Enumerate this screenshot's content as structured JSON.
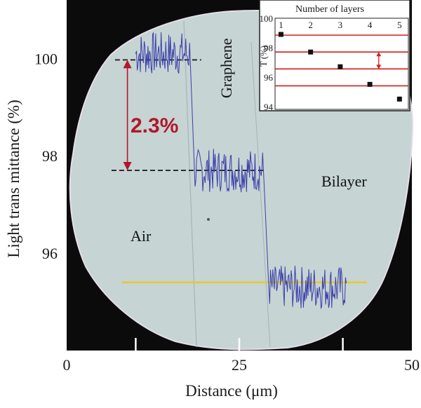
{
  "colors": {
    "photo_background": "#0b0b0b",
    "flake": "#c6d4d4",
    "trace": "#3b3fa8",
    "yellow_line": "#e8c832",
    "annotation_red": "#b0182a",
    "inset_red": "#d21e1e"
  },
  "chart_data": [
    {
      "type": "line",
      "xlabel": "Distance (μm)",
      "ylabel": "Light trans mittance (%)",
      "xlim": [
        0,
        50
      ],
      "ylim": [
        94.0,
        101.2
      ],
      "x_ticks": [
        "0",
        "25",
        "50"
      ],
      "y_ticks": [
        "96",
        "98",
        "100"
      ],
      "x_tick_values": [
        0,
        25,
        50
      ],
      "y_tick_values": [
        96,
        98,
        100
      ],
      "grid": false,
      "series": [
        {
          "segments": [
            {
              "x_start": 10,
              "x_end": 17.8,
              "mean": 100.1,
              "noise": 0.45
            },
            {
              "x_start": 18.6,
              "x_end": 28.5,
              "mean": 97.7,
              "noise": 0.45
            },
            {
              "x_start": 29.3,
              "x_end": 40.5,
              "mean": 95.3,
              "noise": 0.45
            }
          ]
        }
      ],
      "reference_lines": [
        {
          "style": "dashed",
          "y": 99.97,
          "x_start": 7.0,
          "x_end": 19.5
        },
        {
          "style": "dashed",
          "y": 97.7,
          "x_start": 6.5,
          "x_end": 28.5
        },
        {
          "style": "solid-yellow",
          "y": 95.4,
          "x_start": 8.0,
          "x_end": 43.5
        }
      ],
      "annotations": [
        {
          "text": "2.3%",
          "kind": "difference_arrow",
          "y_top": 99.97,
          "y_bottom": 97.7,
          "x": 8.8
        },
        {
          "text": "Graphene"
        },
        {
          "text": "Bilayer"
        },
        {
          "text": "Air"
        }
      ]
    },
    {
      "type": "scatter",
      "title": "Number of layers",
      "ylabel": "T (%)",
      "x_ticks": [
        "1",
        "2",
        "3",
        "4",
        "5"
      ],
      "y_ticks": [
        "94",
        "96",
        "98",
        "100"
      ],
      "xlim": [
        0.8,
        5.3
      ],
      "ylim": [
        93.8,
        100
      ],
      "x": [
        1,
        2,
        3,
        4,
        5
      ],
      "y": [
        98.9,
        97.7,
        96.7,
        95.5,
        94.5
      ],
      "reference_lines_y": [
        98.85,
        97.7,
        96.55,
        95.4
      ],
      "double_arrow": {
        "y_top": 97.7,
        "y_bottom": 96.55,
        "x": 4.3
      }
    }
  ]
}
